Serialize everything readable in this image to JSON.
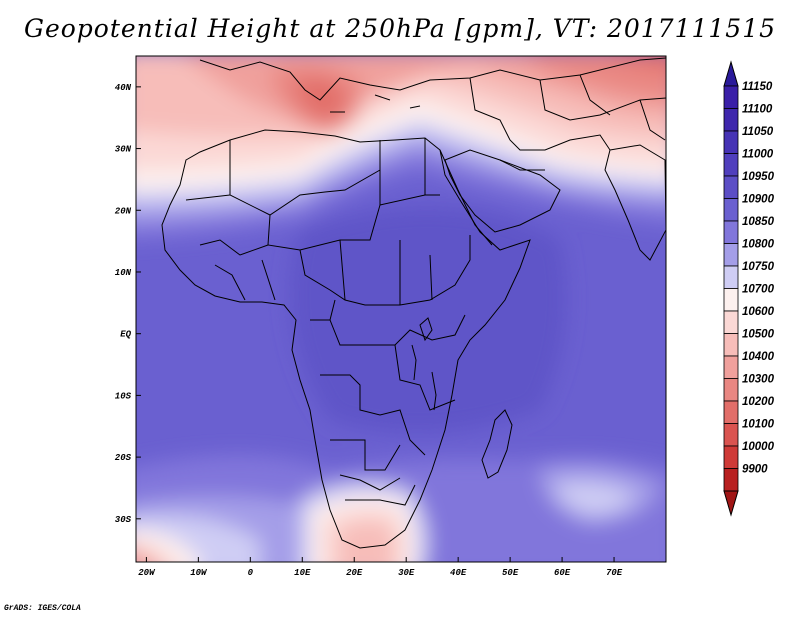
{
  "title": "Geopotential Height at 250hPa [gpm], VT: 2017111515",
  "credit": "GrADS: IGES/COLA",
  "map": {
    "variable": "Geopotential Height",
    "level": "250hPa",
    "units": "gpm",
    "valid_time": "2017111515",
    "region": "Africa",
    "lon_range": [
      -22,
      80
    ],
    "lat_range": [
      -37,
      45
    ],
    "x_ticks": [
      {
        "lon": -20,
        "label": "20W"
      },
      {
        "lon": -10,
        "label": "10W"
      },
      {
        "lon": 0,
        "label": "0"
      },
      {
        "lon": 10,
        "label": "10E"
      },
      {
        "lon": 20,
        "label": "20E"
      },
      {
        "lon": 30,
        "label": "30E"
      },
      {
        "lon": 40,
        "label": "40E"
      },
      {
        "lon": 50,
        "label": "50E"
      },
      {
        "lon": 60,
        "label": "60E"
      },
      {
        "lon": 70,
        "label": "70E"
      }
    ],
    "y_ticks": [
      {
        "lat": 40,
        "label": "40N"
      },
      {
        "lat": 30,
        "label": "30N"
      },
      {
        "lat": 20,
        "label": "20N"
      },
      {
        "lat": 10,
        "label": "10N"
      },
      {
        "lat": 0,
        "label": "EQ"
      },
      {
        "lat": -10,
        "label": "10S"
      },
      {
        "lat": -20,
        "label": "20S"
      },
      {
        "lat": -30,
        "label": "30S"
      }
    ]
  },
  "colorbar": {
    "levels": [
      {
        "label": "11150",
        "color": "#3a1fa8"
      },
      {
        "label": "11100",
        "color": "#3f27ad"
      },
      {
        "label": "11050",
        "color": "#4633b5"
      },
      {
        "label": "11000",
        "color": "#503fbd"
      },
      {
        "label": "10950",
        "color": "#5c4ec6"
      },
      {
        "label": "10900",
        "color": "#6a60d0"
      },
      {
        "label": "10850",
        "color": "#8176db"
      },
      {
        "label": "10800",
        "color": "#a49ee8"
      },
      {
        "label": "10750",
        "color": "#cfcdf4"
      },
      {
        "label": "10700",
        "color": "#fdf1ef"
      },
      {
        "label": "10600",
        "color": "#fbd8d5"
      },
      {
        "label": "10500",
        "color": "#f7bdb9"
      },
      {
        "label": "10400",
        "color": "#f0a09c"
      },
      {
        "label": "10300",
        "color": "#e98782"
      },
      {
        "label": "10200",
        "color": "#e26e69"
      },
      {
        "label": "10100",
        "color": "#da5450"
      },
      {
        "label": "10000",
        "color": "#cf3a37"
      },
      {
        "label": "9900",
        "color": "#b82020"
      }
    ],
    "top_arrow_color": "#2a1a9a",
    "bottom_arrow_color": "#a01515"
  }
}
